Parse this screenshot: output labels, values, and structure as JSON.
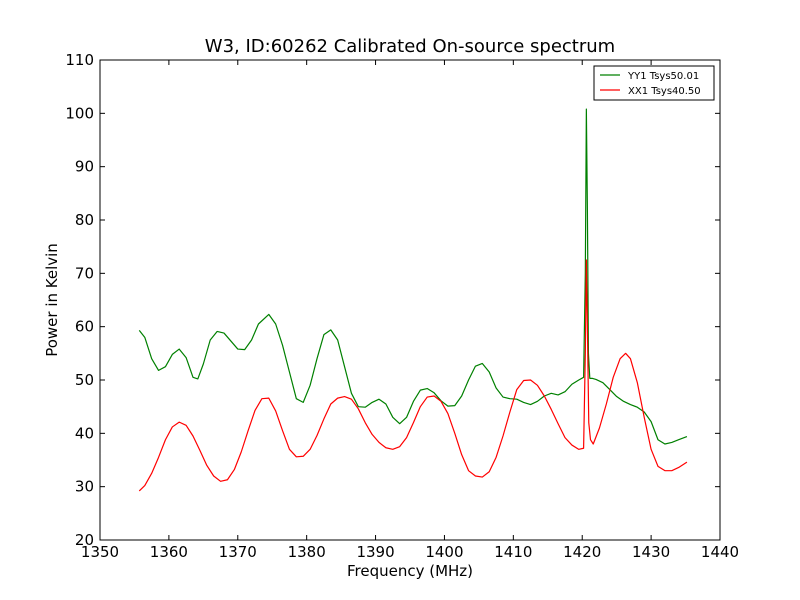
{
  "chart_data": {
    "type": "line",
    "title": "W3, ID:60262 Calibrated On-source spectrum",
    "xlabel": "Frequency (MHz)",
    "ylabel": "Power in Kelvin",
    "xlim": [
      1350,
      1440
    ],
    "ylim": [
      20,
      110
    ],
    "xticks": [
      1350,
      1360,
      1370,
      1380,
      1390,
      1400,
      1410,
      1420,
      1430,
      1440
    ],
    "yticks": [
      20,
      30,
      40,
      50,
      60,
      70,
      80,
      90,
      100,
      110
    ],
    "legend_position": "top-right",
    "series": [
      {
        "name": "YY1 Tsys50.01",
        "color": "#008000",
        "x": [
          1355.7,
          1356.5,
          1357.5,
          1358.5,
          1359.5,
          1360.5,
          1361.5,
          1362.5,
          1363.5,
          1364.2,
          1365,
          1366,
          1367,
          1368,
          1369,
          1370,
          1371,
          1372,
          1373,
          1374.5,
          1375.5,
          1376.5,
          1377.5,
          1378.5,
          1379.5,
          1380.5,
          1381.5,
          1382.5,
          1383.5,
          1384.5,
          1385.5,
          1386.5,
          1387.5,
          1388.5,
          1389.5,
          1390.5,
          1391.5,
          1392.5,
          1393.5,
          1394.5,
          1395.5,
          1396.5,
          1397.5,
          1398.5,
          1399.5,
          1400.5,
          1401.5,
          1402.5,
          1403.5,
          1404.5,
          1405.5,
          1406.5,
          1407.5,
          1408.5,
          1409.5,
          1410.5,
          1411.5,
          1412.5,
          1413.5,
          1414.5,
          1415.5,
          1416.5,
          1417.5,
          1418.5,
          1419.5,
          1420.2,
          1420.45,
          1420.6,
          1420.75,
          1420.9,
          1421.1,
          1421.5,
          1422,
          1423,
          1424,
          1425,
          1426,
          1427,
          1428,
          1429,
          1430,
          1431,
          1432,
          1433,
          1434,
          1435.2
        ],
        "y": [
          59.3,
          58,
          54,
          51.8,
          52.5,
          54.8,
          55.8,
          54.2,
          50.5,
          50.2,
          53,
          57.5,
          59.1,
          58.8,
          57.3,
          55.8,
          55.7,
          57.5,
          60.5,
          62.3,
          60.5,
          56.5,
          51.5,
          46.5,
          45.8,
          49,
          54,
          58.5,
          59.4,
          57.5,
          52.5,
          47.5,
          45,
          44.9,
          45.8,
          46.4,
          45.5,
          43,
          41.8,
          43,
          46,
          48.1,
          48.4,
          47.6,
          46.1,
          45.1,
          45.2,
          47,
          50,
          52.6,
          53.1,
          51.5,
          48.5,
          46.8,
          46.5,
          46.4,
          45.8,
          45.4,
          46,
          47,
          47.5,
          47.2,
          47.8,
          49.2,
          50,
          50.5,
          70,
          100.8,
          82,
          55,
          50.3,
          50.3,
          50.1,
          49.5,
          48.2,
          46.9,
          46,
          45.4,
          44.9,
          44,
          42.2,
          38.8,
          38,
          38.3,
          38.8,
          39.4
        ]
      },
      {
        "name": "XX1 Tsys40.50",
        "color": "#ff0000",
        "x": [
          1355.7,
          1356.5,
          1357.5,
          1358.5,
          1359.5,
          1360.5,
          1361.5,
          1362.5,
          1363.5,
          1364.5,
          1365.5,
          1366.5,
          1367.5,
          1368.5,
          1369.5,
          1370.5,
          1371.5,
          1372.5,
          1373.5,
          1374.5,
          1375.5,
          1376.5,
          1377.5,
          1378.5,
          1379.5,
          1380.5,
          1381.5,
          1382.5,
          1383.5,
          1384.5,
          1385.5,
          1386.5,
          1387.5,
          1388.5,
          1389.5,
          1390.5,
          1391.5,
          1392.5,
          1393.5,
          1394.5,
          1395.5,
          1396.5,
          1397.5,
          1398.5,
          1399.5,
          1400.5,
          1401.5,
          1402.5,
          1403.5,
          1404.5,
          1405.5,
          1406.5,
          1407.5,
          1408.5,
          1409.5,
          1410.5,
          1411.5,
          1412.5,
          1413.5,
          1414.5,
          1415.5,
          1416.5,
          1417.5,
          1418.5,
          1419.5,
          1420.2,
          1420.45,
          1420.6,
          1420.75,
          1420.95,
          1421.2,
          1421.6,
          1422.5,
          1423.5,
          1424.5,
          1425.5,
          1426.3,
          1427,
          1428,
          1429,
          1430,
          1431,
          1432,
          1433,
          1434,
          1435.2
        ],
        "y": [
          29.2,
          30.2,
          32.5,
          35.5,
          38.8,
          41.2,
          42.1,
          41.5,
          39.5,
          36.8,
          34,
          32,
          31,
          31.3,
          33.2,
          36.5,
          40.5,
          44.3,
          46.5,
          46.6,
          44.2,
          40.5,
          37,
          35.6,
          35.7,
          37,
          39.6,
          42.7,
          45.5,
          46.6,
          46.9,
          46.4,
          44.6,
          42,
          39.8,
          38.3,
          37.3,
          37,
          37.5,
          39.2,
          42,
          45,
          46.8,
          47,
          46,
          43.7,
          40,
          36,
          33,
          32,
          31.8,
          32.8,
          35.5,
          39.5,
          44,
          48.2,
          49.9,
          50,
          49,
          47,
          44.5,
          41.8,
          39.2,
          37.8,
          37,
          37.2,
          55,
          72.5,
          60,
          42,
          38.8,
          38,
          41,
          45.5,
          50.5,
          54,
          55,
          54,
          49.5,
          43,
          37,
          33.8,
          33,
          33,
          33.6,
          34.6
        ]
      }
    ]
  }
}
